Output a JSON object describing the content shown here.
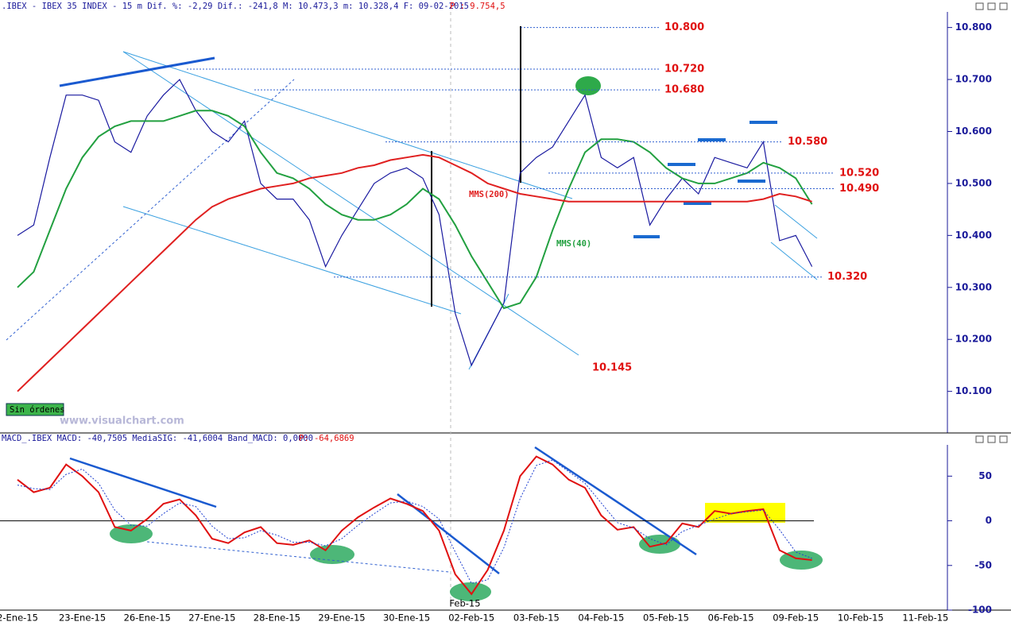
{
  "chart_data": [
    {
      "type": "line",
      "title": ".IBEX - IBEX 35 INDEX -  15 m Dif. %: -2,29 Dif.: -241,8 M: 10.473,3 m: 10.328,4 F: 09-02-2015",
      "title_extra": "P : 9.754,5",
      "status": "Sin órdenes",
      "watermark": "www.visualchart.com",
      "ylim": [
        10.02,
        10.83
      ],
      "yticks": [
        {
          "value": 10.1,
          "label": "10.100"
        },
        {
          "value": 10.2,
          "label": "10.200"
        },
        {
          "value": 10.3,
          "label": "10.300"
        },
        {
          "value": 10.4,
          "label": "10.400"
        },
        {
          "value": 10.5,
          "label": "10.500"
        },
        {
          "value": 10.6,
          "label": "10.600"
        },
        {
          "value": 10.7,
          "label": "10.700"
        },
        {
          "value": 10.8,
          "label": "10.800"
        }
      ],
      "series": [
        {
          "name": "IBEX",
          "color": "#1a1aa0",
          "values": [
            10.4,
            10.42,
            10.55,
            10.67,
            10.67,
            10.66,
            10.58,
            10.56,
            10.63,
            10.67,
            10.7,
            10.64,
            10.6,
            10.58,
            10.62,
            10.5,
            10.47,
            10.47,
            10.43,
            10.34,
            10.4,
            10.45,
            10.5,
            10.52,
            10.53,
            10.51,
            10.44,
            10.25,
            10.15,
            10.21,
            10.27,
            10.52,
            10.55,
            10.57,
            10.62,
            10.67,
            10.55,
            10.53,
            10.55,
            10.42,
            10.47,
            10.51,
            10.48,
            10.55,
            10.54,
            10.53,
            10.58,
            10.39,
            10.4,
            10.34,
            null,
            null,
            null,
            null,
            null,
            null,
            null
          ]
        },
        {
          "name": "MMS(40)",
          "color": "#22a040",
          "values": [
            10.3,
            10.33,
            10.41,
            10.49,
            10.55,
            10.59,
            10.61,
            10.62,
            10.62,
            10.62,
            10.63,
            10.64,
            10.64,
            10.63,
            10.61,
            10.56,
            10.52,
            10.51,
            10.49,
            10.46,
            10.44,
            10.43,
            10.43,
            10.44,
            10.46,
            10.49,
            10.47,
            10.42,
            10.36,
            10.31,
            10.26,
            10.27,
            10.32,
            10.41,
            10.49,
            10.56,
            10.585,
            10.585,
            10.58,
            10.56,
            10.53,
            10.51,
            10.5,
            10.5,
            10.51,
            10.52,
            10.54,
            10.53,
            10.51,
            10.46,
            null,
            null,
            null,
            null,
            null,
            null,
            null
          ]
        },
        {
          "name": "MMS(200)",
          "color": "#e02020",
          "values": [
            10.1,
            10.13,
            10.16,
            10.19,
            10.22,
            10.25,
            10.28,
            10.31,
            10.34,
            10.37,
            10.4,
            10.43,
            10.455,
            10.47,
            10.48,
            10.49,
            10.495,
            10.5,
            10.51,
            10.515,
            10.52,
            10.53,
            10.535,
            10.545,
            10.55,
            10.555,
            10.55,
            10.535,
            10.52,
            10.5,
            10.49,
            10.48,
            10.475,
            10.47,
            10.465,
            10.465,
            10.465,
            10.465,
            10.465,
            10.465,
            10.465,
            10.465,
            10.465,
            10.465,
            10.465,
            10.465,
            10.47,
            10.48,
            10.475,
            10.465,
            null,
            null,
            null,
            null,
            null,
            null,
            null
          ]
        }
      ],
      "annotations": [
        {
          "label": "10.800",
          "value": 10.8
        },
        {
          "label": "10.720",
          "value": 10.72
        },
        {
          "label": "10.680",
          "value": 10.68
        },
        {
          "label": "10.580",
          "value": 10.58
        },
        {
          "label": "10.520",
          "value": 10.52
        },
        {
          "label": "10.490",
          "value": 10.49
        },
        {
          "label": "10.320",
          "value": 10.32
        },
        {
          "label": "10.145",
          "value": 10.145
        }
      ]
    },
    {
      "type": "line",
      "title": "MACD_.IBEX MACD: -40,7505 MediaSIG: -41,6004 Band_MACD: 0,0000",
      "title_extra": "P: -64,6869",
      "annotation": "Feb-15",
      "ylim": [
        -100,
        85
      ],
      "yticks": [
        -100,
        -50,
        0,
        50
      ],
      "categories": [
        "2-Ene-15",
        null,
        null,
        null,
        "23-Ene-15",
        null,
        null,
        null,
        "26-Ene-15",
        null,
        null,
        null,
        "27-Ene-15",
        null,
        null,
        null,
        "28-Ene-15",
        null,
        null,
        null,
        "29-Ene-15",
        null,
        null,
        null,
        "30-Ene-15",
        null,
        null,
        null,
        "02-Feb-15",
        null,
        null,
        null,
        "03-Feb-15",
        null,
        null,
        null,
        "04-Feb-15",
        null,
        null,
        null,
        "05-Feb-15",
        null,
        null,
        null,
        "06-Feb-15",
        null,
        null,
        null,
        "09-Feb-15",
        null,
        null,
        null,
        "10-Feb-15",
        null,
        null,
        null,
        "11-Feb-15"
      ],
      "series": [
        {
          "name": "MACD",
          "color": "#e01010",
          "values": [
            46,
            32,
            37,
            63,
            50,
            32,
            -7,
            -11,
            2,
            19,
            24,
            6,
            -20,
            -25,
            -13,
            -7,
            -25,
            -27,
            -22,
            -33,
            -11,
            4,
            15,
            25,
            19,
            11,
            -11,
            -60,
            -82,
            -55,
            -11,
            50,
            72,
            63,
            46,
            37,
            6,
            -10,
            -7,
            -29,
            -25,
            -3,
            -7,
            11,
            8,
            11,
            13,
            -33,
            -42,
            -44,
            null,
            null,
            null,
            null,
            null,
            null,
            null
          ]
        },
        {
          "name": "MediaSIG",
          "color": "#2040d0",
          "values": [
            40,
            36,
            35,
            52,
            58,
            42,
            12,
            -5,
            -6,
            8,
            20,
            16,
            -6,
            -20,
            -19,
            -11,
            -16,
            -24,
            -24,
            -28,
            -20,
            -5,
            8,
            20,
            22,
            16,
            2,
            -35,
            -70,
            -66,
            -30,
            25,
            62,
            68,
            55,
            42,
            20,
            -2,
            -8,
            -20,
            -27,
            -12,
            -5,
            2,
            8,
            10,
            12,
            -10,
            -35,
            -42,
            null,
            null,
            null,
            null,
            null,
            null,
            null
          ]
        }
      ]
    }
  ]
}
